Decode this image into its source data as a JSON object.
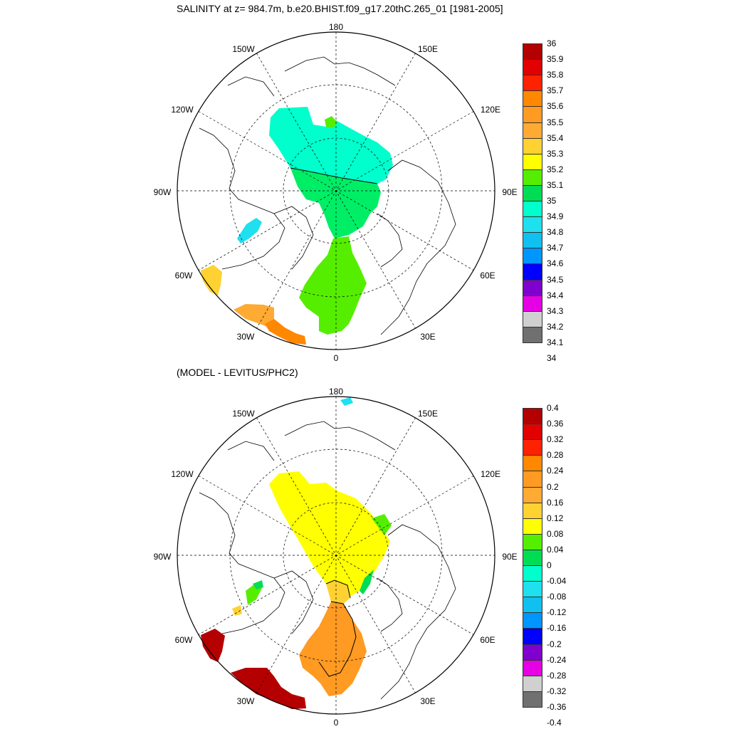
{
  "top_panel": {
    "title": "SALINITY at z= 984.7m, b.e20.BHIST.f09_g17.20thC.265_01 [1981-2005]",
    "longitude_labels": [
      "180",
      "150E",
      "120E",
      "90E",
      "60E",
      "30E",
      "0",
      "30W",
      "60W",
      "90W",
      "120W",
      "150W"
    ],
    "colorbar": {
      "labels": [
        "36",
        "35.9",
        "35.8",
        "35.7",
        "35.6",
        "35.5",
        "35.4",
        "35.3",
        "35.2",
        "35.1",
        "35",
        "34.9",
        "34.8",
        "34.7",
        "34.6",
        "34.5",
        "34.4",
        "34.3",
        "34.2",
        "34.1",
        "34"
      ],
      "colors": [
        "#b40000",
        "#e20000",
        "#ff2200",
        "#ff8800",
        "#ff9a22",
        "#ffaa33",
        "#ffd232",
        "#ffff00",
        "#55ee00",
        "#00dd55",
        "#00ffcc",
        "#1ee0ee",
        "#10c0f0",
        "#0096ff",
        "#0000ff",
        "#8000d0",
        "#e600e6",
        "#d0d0d0",
        "#707070"
      ]
    }
  },
  "bottom_panel": {
    "title": "(MODEL - LEVITUS/PHC2)",
    "longitude_labels": [
      "180",
      "150E",
      "120E",
      "90E",
      "60E",
      "30E",
      "0",
      "30W",
      "60W",
      "90W",
      "120W",
      "150W"
    ],
    "colorbar": {
      "labels": [
        "0.4",
        "0.36",
        "0.32",
        "0.28",
        "0.24",
        "0.2",
        "0.16",
        "0.12",
        "0.08",
        "0.04",
        "0",
        "-0.04",
        "-0.08",
        "-0.12",
        "-0.16",
        "-0.2",
        "-0.24",
        "-0.28",
        "-0.32",
        "-0.36",
        "-0.4"
      ],
      "colors": [
        "#b40000",
        "#e20000",
        "#ff2200",
        "#ff8800",
        "#ff9a22",
        "#ffaa33",
        "#ffd232",
        "#ffff00",
        "#55ee00",
        "#00dd55",
        "#00ffcc",
        "#1ee0ee",
        "#10c0f0",
        "#0096ff",
        "#0000ff",
        "#8000d0",
        "#e600e6",
        "#d0d0d0",
        "#707070"
      ]
    }
  }
}
